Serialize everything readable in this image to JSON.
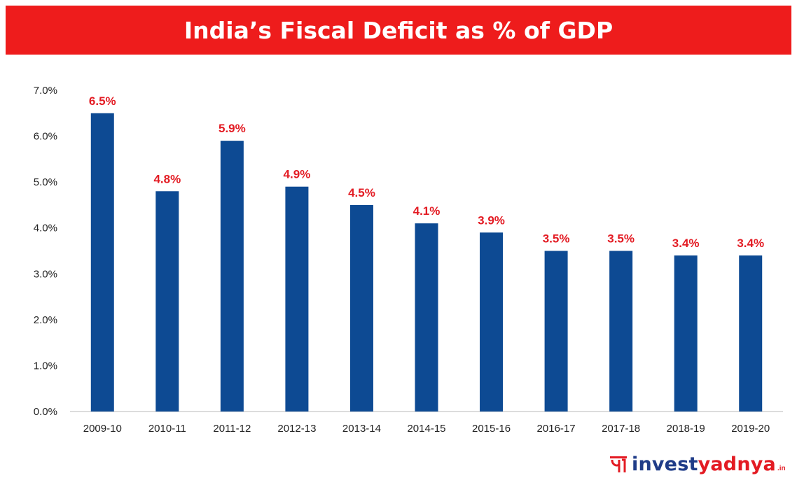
{
  "chart_data": {
    "type": "bar",
    "title": "India’s Fiscal Deficit as % of GDP",
    "categories": [
      "2009-10",
      "2010-11",
      "2011-12",
      "2012-13",
      "2013-14",
      "2014-15",
      "2015-16",
      "2016-17",
      "2017-18",
      "2018-19",
      "2019-20"
    ],
    "values": [
      6.5,
      4.8,
      5.9,
      4.9,
      4.5,
      4.1,
      3.9,
      3.5,
      3.5,
      3.4,
      3.4
    ],
    "data_labels": [
      "6.5%",
      "4.8%",
      "5.9%",
      "4.9%",
      "4.5%",
      "4.1%",
      "3.9%",
      "3.5%",
      "3.5%",
      "3.4%",
      "3.4%"
    ],
    "yticks": [
      "0.0%",
      "1.0%",
      "2.0%",
      "3.0%",
      "4.0%",
      "5.0%",
      "6.0%",
      "7.0%"
    ],
    "ylim": [
      0,
      7
    ],
    "xlabel": "",
    "ylabel": "",
    "grid": false,
    "legend": "none",
    "colors": {
      "bar": "#0d4a93",
      "data_label": "#e31b23",
      "title_bg": "#ee1c1c",
      "title_text": "#ffffff",
      "axis_text": "#222222",
      "axis_line": "#d0d0d0"
    }
  },
  "branding": {
    "logo_icon": "investyadnya-logo-icon",
    "logo_part1": "invest",
    "logo_part2": "yadnya",
    "logo_suffix": ".in"
  }
}
